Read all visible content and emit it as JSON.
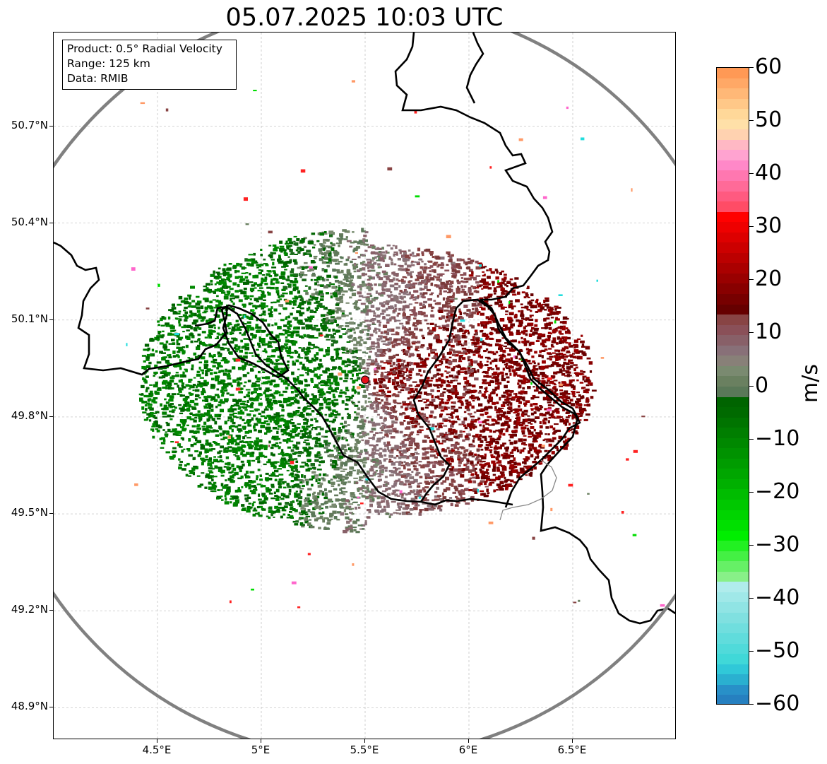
{
  "title": "05.07.2025 10:03 UTC",
  "info": {
    "product": "Product: 0.5° Radial Velocity",
    "range": "Range: 125 km",
    "data": "Data: RMIB"
  },
  "map_extent": {
    "lon_min": 4.0,
    "lon_max": 7.0,
    "lat_min": 48.8,
    "lat_max": 50.99
  },
  "radar_site": {
    "lon": 5.5,
    "lat": 49.915,
    "color": "#e8101a"
  },
  "range_ring_color": "#808080",
  "lat_ticks": [
    {
      "value": 50.7,
      "label": "50.7°N"
    },
    {
      "value": 50.4,
      "label": "50.4°N"
    },
    {
      "value": 50.1,
      "label": "50.1°N"
    },
    {
      "value": 49.8,
      "label": "49.8°N"
    },
    {
      "value": 49.5,
      "label": "49.5°N"
    },
    {
      "value": 49.2,
      "label": "49.2°N"
    },
    {
      "value": 48.9,
      "label": "48.9°N"
    }
  ],
  "lon_ticks": [
    {
      "value": 4.5,
      "label": "4.5°E"
    },
    {
      "value": 5.0,
      "label": "5°E"
    },
    {
      "value": 5.5,
      "label": "5.5°E"
    },
    {
      "value": 6.0,
      "label": "6°E"
    },
    {
      "value": 6.5,
      "label": "6.5°E"
    }
  ],
  "colorbar": {
    "label": "m/s",
    "min": -60,
    "max": 60,
    "ticks": [
      {
        "value": 60,
        "label": "60"
      },
      {
        "value": 50,
        "label": "50"
      },
      {
        "value": 40,
        "label": "40"
      },
      {
        "value": 30,
        "label": "30"
      },
      {
        "value": 20,
        "label": "20"
      },
      {
        "value": 10,
        "label": "10"
      },
      {
        "value": 0,
        "label": "0"
      },
      {
        "value": -10,
        "label": "−10"
      },
      {
        "value": -20,
        "label": "−20"
      },
      {
        "value": -30,
        "label": "−30"
      },
      {
        "value": -40,
        "label": "−40"
      },
      {
        "value": -50,
        "label": "−50"
      },
      {
        "value": -60,
        "label": "−60"
      }
    ],
    "colors": [
      "#ff9955",
      "#ffa866",
      "#ffb877",
      "#ffc888",
      "#ffd899",
      "#ffe0a8",
      "#ffd2b0",
      "#ffb8c4",
      "#ffa3d0",
      "#ff88c8",
      "#ff77b0",
      "#ff6a98",
      "#ff5a80",
      "#ff4c66",
      "#ff0000",
      "#ee0000",
      "#dd0000",
      "#cc0000",
      "#bb0000",
      "#aa0000",
      "#990000",
      "#880000",
      "#770000",
      "#660000",
      "#884444",
      "#8a5058",
      "#886068",
      "#887078",
      "#888078",
      "#7a8a70",
      "#6a8060",
      "#5a7858",
      "#006400",
      "#006a00",
      "#007400",
      "#007e00",
      "#008800",
      "#009200",
      "#009c00",
      "#00a600",
      "#00b000",
      "#00bc00",
      "#00c800",
      "#00d400",
      "#00e000",
      "#00ee00",
      "#22f022",
      "#44f044",
      "#66f066",
      "#88f088",
      "#b0ecec",
      "#a0e8e8",
      "#90e4e4",
      "#80e0e0",
      "#70dede",
      "#60dcdc",
      "#50dada",
      "#40d8d8",
      "#30c8d8",
      "#2ab0d0",
      "#2890c8",
      "#2680c0"
    ]
  }
}
